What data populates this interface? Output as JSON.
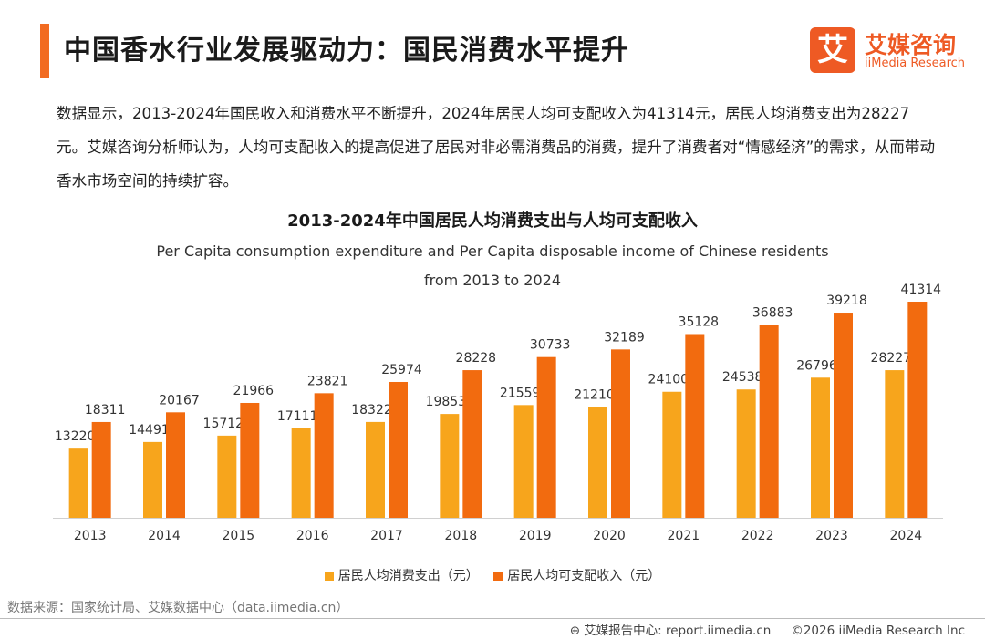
{
  "header": {
    "title": "中国香水行业发展驱动力：国民消费水平提升",
    "logo_mark": "艾",
    "logo_cn": "艾媒咨询",
    "logo_en": "iiMedia Research"
  },
  "description": "数据显示，2013-2024年国民收入和消费水平不断提升，2024年居民人均可支配收入为41314元，居民人均消费支出为28227元。艾媒咨询分析师认为，人均可支配收入的提高促进了居民对非必需消费品的消费，提升了消费者对“情感经济”的需求，从而带动香水市场空间的持续扩容。",
  "chart_data": {
    "type": "bar",
    "title": "2013-2024年中国居民人均消费支出与人均可支配收入",
    "subtitle_line1": "Per Capita consumption expenditure and Per Capita disposable income of Chinese residents",
    "subtitle_line2": "from 2013 to 2024",
    "categories": [
      "2013",
      "2014",
      "2015",
      "2016",
      "2017",
      "2018",
      "2019",
      "2020",
      "2021",
      "2022",
      "2023",
      "2024"
    ],
    "series": [
      {
        "name": "居民人均消费支出（元）",
        "color": "#f7a51c",
        "values": [
          13220,
          14491,
          15712,
          17111,
          18322,
          19853,
          21559,
          21210,
          24100,
          24538,
          26796,
          28227
        ]
      },
      {
        "name": "居民人均可支配收入（元）",
        "color": "#f26b0f",
        "values": [
          18311,
          20167,
          21966,
          23821,
          25974,
          28228,
          30733,
          32189,
          35128,
          36883,
          39218,
          41314
        ]
      }
    ],
    "ylim": [
      0,
      45000
    ],
    "xlabel": "",
    "ylabel": "",
    "grid": false,
    "legend": "bottom"
  },
  "source": "数据来源：国家统计局、艾媒数据中心（data.iimedia.cn）",
  "footer": {
    "report_label": "艾媒报告中心: report.iimedia.cn",
    "copyright": "©2026  iiMedia Research Inc"
  }
}
